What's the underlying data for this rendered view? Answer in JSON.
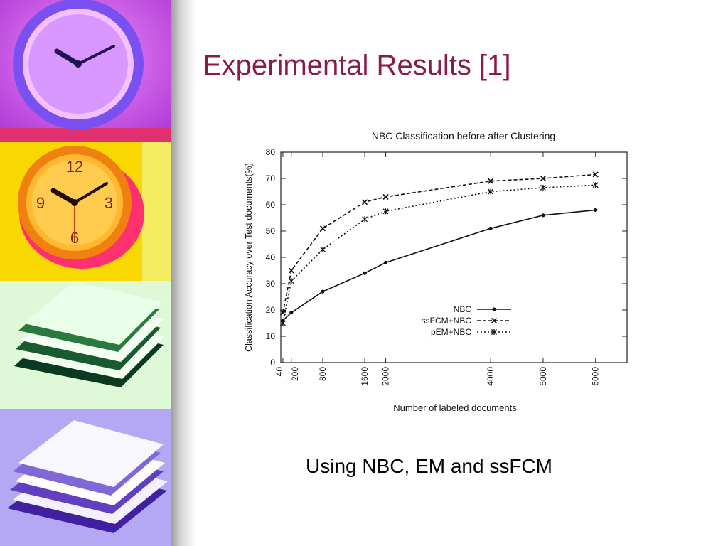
{
  "slide": {
    "title": "Experimental Results [1]",
    "caption": "Using NBC, EM and ssFCM",
    "colors": {
      "title": "#8b1a4a",
      "panel_clock_purple": "#c04fe0",
      "panel_clock_yellow": "#f4c000",
      "panel_books_green": "#c8f0c0",
      "panel_books_violet": "#a898f0"
    },
    "sidebar_images": [
      {
        "name": "purple-clock-photo",
        "icon": "clock-icon"
      },
      {
        "name": "yellow-clock-photo",
        "icon": "clock-icon"
      },
      {
        "name": "green-books-photo",
        "icon": "books-icon"
      },
      {
        "name": "violet-books-photo",
        "icon": "books-icon"
      }
    ]
  },
  "chart_data": {
    "type": "line",
    "title": "NBC Classification before  after Clustering",
    "xlabel": "Number of labeled documents",
    "ylabel": "Classification Accuracy over Test documents(%)",
    "x_ticks": [
      40,
      200,
      800,
      1600,
      2000,
      4000,
      5000,
      6000
    ],
    "y_ticks": [
      0,
      10,
      20,
      30,
      40,
      50,
      60,
      70,
      80
    ],
    "xlim": [
      0,
      6600
    ],
    "ylim": [
      0,
      80
    ],
    "grid": false,
    "legend_position": "lower-right",
    "series": [
      {
        "name": "NBC",
        "style": "solid",
        "marker": "dot",
        "x": [
          40,
          200,
          800,
          1600,
          2000,
          4000,
          5000,
          6000
        ],
        "values": [
          16,
          19,
          27,
          34,
          38,
          51,
          56,
          58
        ]
      },
      {
        "name": "ssFCM+NBC",
        "style": "dashed",
        "marker": "x",
        "x": [
          40,
          200,
          800,
          1600,
          2000,
          4000,
          5000,
          6000
        ],
        "values": [
          19,
          35,
          51,
          61,
          63,
          69,
          70,
          71.5
        ]
      },
      {
        "name": "pEM+NBC",
        "style": "dotted",
        "marker": "star",
        "x": [
          40,
          200,
          800,
          1600,
          2000,
          4000,
          5000,
          6000
        ],
        "values": [
          15,
          31,
          43,
          54.5,
          57.5,
          65,
          66.5,
          67.5
        ]
      }
    ]
  }
}
